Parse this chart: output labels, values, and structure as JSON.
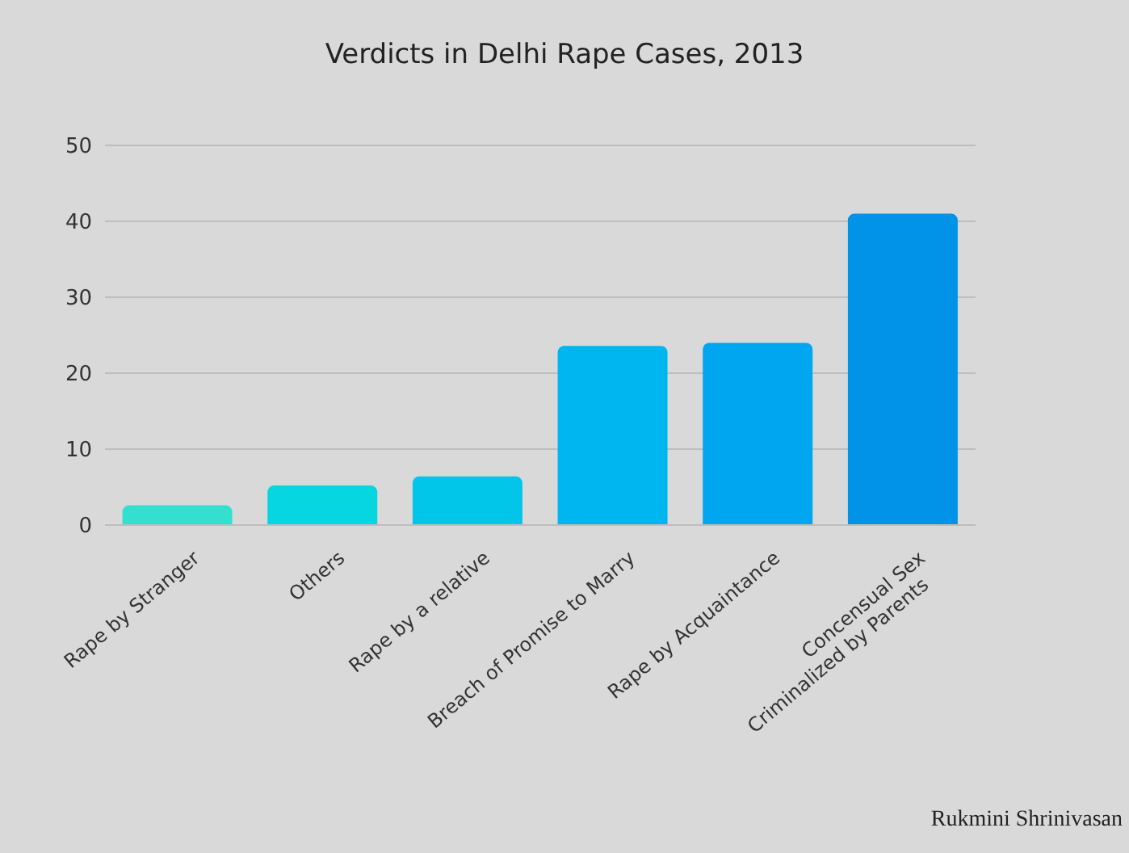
{
  "chart_data": {
    "type": "bar",
    "title": "Verdicts in Delhi Rape Cases, 2013",
    "categories": [
      "Rape by Stranger",
      "Others",
      "Rape by a relative",
      "Breach of Promise to Marry",
      "Rape by Acquaintance",
      "Concensual Sex\nCriminalized by Parents"
    ],
    "values": [
      2.6,
      5.2,
      6.4,
      23.6,
      24.0,
      41.0
    ],
    "colors": [
      "#33e0cf",
      "#05d6df",
      "#02c6e9",
      "#00b6f0",
      "#00a6ef",
      "#0093e8"
    ],
    "ylim": [
      0,
      50
    ],
    "yticks": [
      0,
      10,
      20,
      30,
      40,
      50
    ],
    "grid": "y",
    "annotations": [
      "Rukmini Shrinivasan"
    ]
  }
}
